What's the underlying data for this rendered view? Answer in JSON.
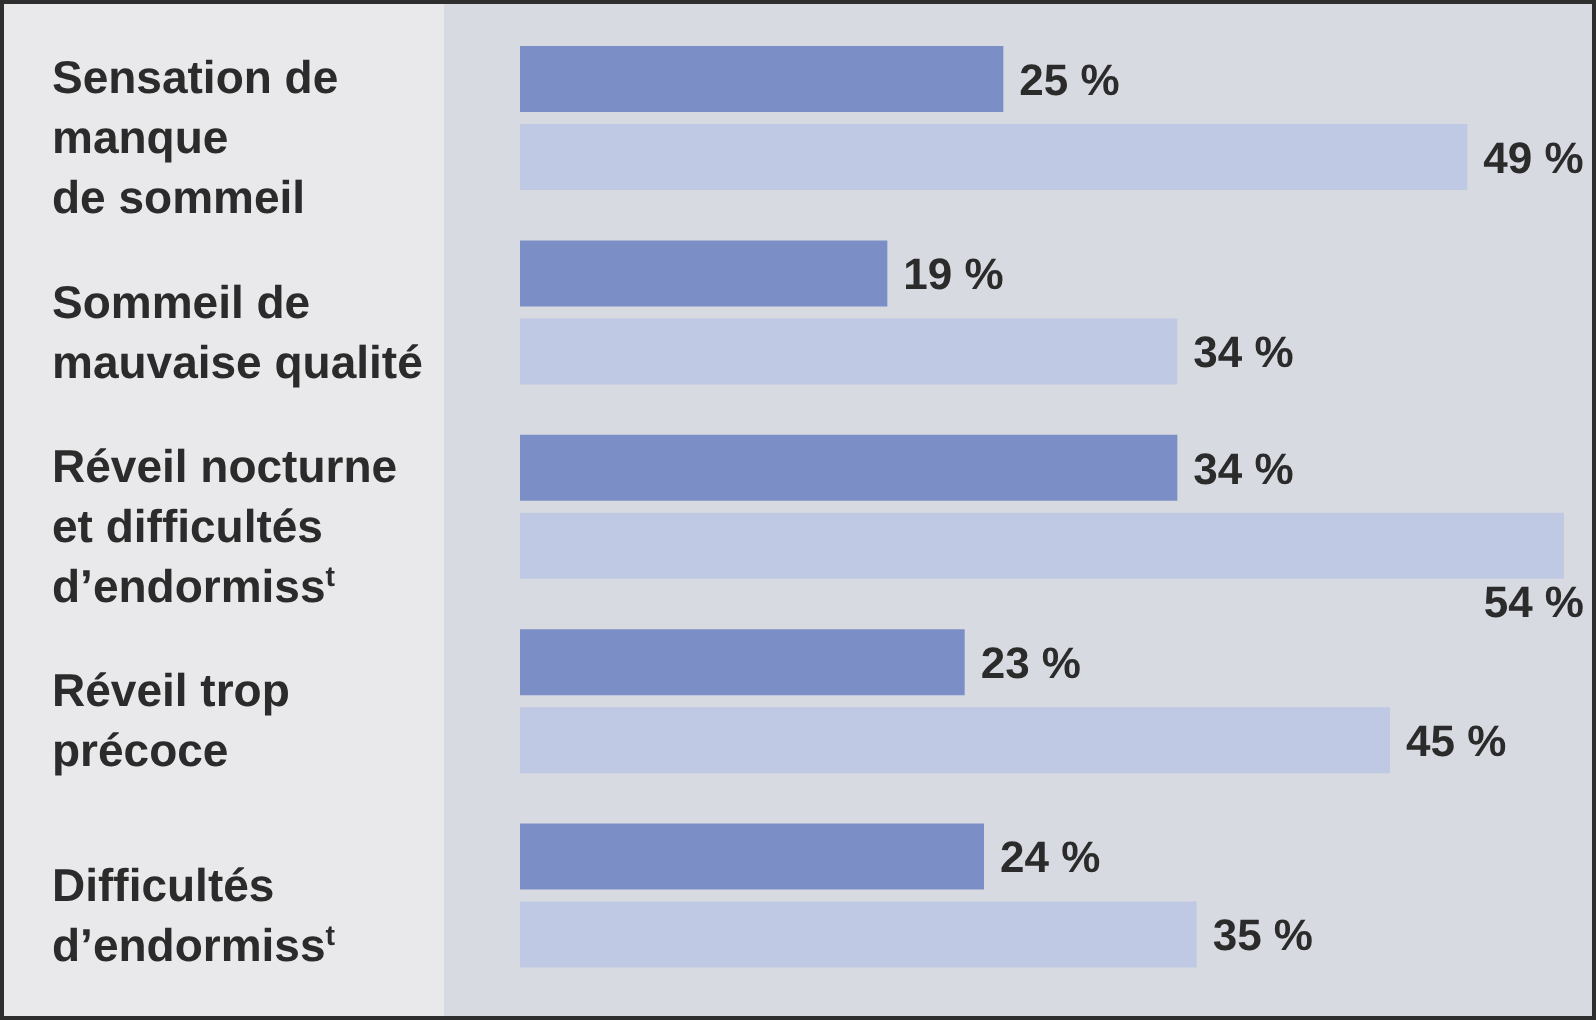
{
  "chart_data": {
    "type": "bar",
    "orientation": "horizontal",
    "categories": [
      "Sensation de\nmanque\nde sommeil",
      "Sommeil de\nmauvaise qualité",
      "Réveil nocturne\net difficultés\nd’endormiss$^{t}$",
      "Réveil trop\nprécoce",
      "Difficultés\nd’endormiss$^{t}$"
    ],
    "series": [
      {
        "color": "#7b8fc6",
        "values": [
          25,
          19,
          34,
          23,
          24
        ],
        "value_labels": [
          "25 %",
          "19 %",
          "34 %",
          "23 %",
          "24 %"
        ]
      },
      {
        "color": "#c0c9e4",
        "values": [
          49,
          34,
          54,
          45,
          35
        ],
        "value_labels": [
          "49 %",
          "34 %",
          "54 %",
          "45 %",
          "35 %"
        ]
      }
    ],
    "tick_labels": "y"
  }
}
